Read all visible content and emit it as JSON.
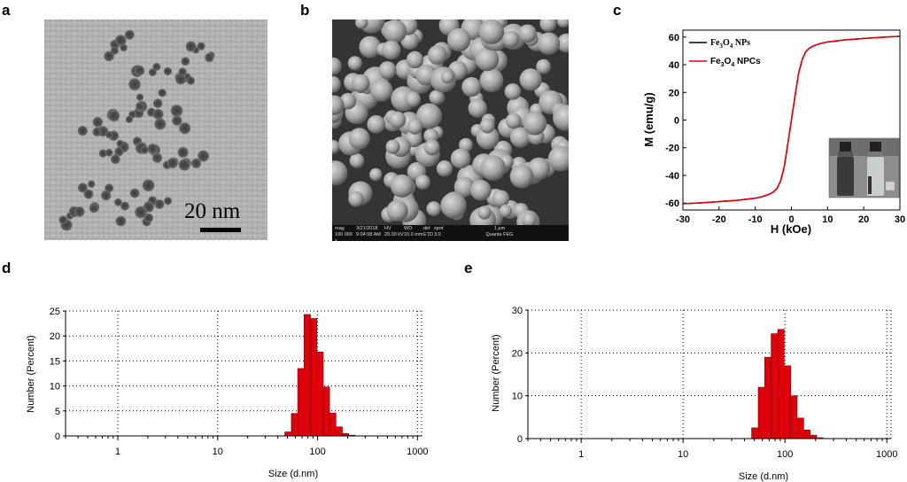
{
  "panels": {
    "a": {
      "letter": "a",
      "scale_bar": "20 nm"
    },
    "b": {
      "letter": "b",
      "info_headers": [
        "mag",
        "3/21/2018",
        "HV",
        "WD",
        "det",
        "spot",
        "1 µm"
      ],
      "info_values": [
        "100 000 x",
        "9:04:08 AM",
        "20.00 kV",
        "10.0 mm",
        "ETD",
        "3.0",
        "Quanta FEG"
      ]
    },
    "c": {
      "letter": "c"
    },
    "d": {
      "letter": "d"
    },
    "e": {
      "letter": "e"
    }
  },
  "colors": {
    "red": "#e0000b",
    "black": "#000000",
    "bar_edge": "#7a0000"
  },
  "chart_data": [
    {
      "id": "c",
      "type": "line",
      "xlabel": "H (kOe)",
      "ylabel": "M (emu/g)",
      "xlim": [
        -30,
        30
      ],
      "ylim": [
        -65,
        65
      ],
      "xticks": [
        -30,
        -20,
        -10,
        0,
        10,
        20,
        30
      ],
      "yticks": [
        -60,
        -40,
        -20,
        0,
        20,
        40,
        60
      ],
      "legend_placement": "top-left",
      "x": [
        -30,
        -25,
        -20,
        -15,
        -10,
        -8,
        -6,
        -5,
        -4,
        -3,
        -2,
        -1,
        0,
        1,
        2,
        3,
        4,
        5,
        6,
        8,
        10,
        15,
        20,
        25,
        30
      ],
      "series": [
        {
          "name": "Fe3O4 NPs",
          "legend_main": "Fe",
          "legend_sub1": "3",
          "legend_mid": "O",
          "legend_sub2": "4",
          "legend_tail": " NPs",
          "color": "#000000",
          "values": [
            -60.5,
            -59.8,
            -59,
            -58,
            -56.5,
            -55.3,
            -53.5,
            -52,
            -49.5,
            -44,
            -34,
            -17.5,
            0,
            17.5,
            34,
            44,
            49.5,
            52,
            53.5,
            55.3,
            56.5,
            58,
            59,
            59.8,
            60.5
          ]
        },
        {
          "name": "Fe3O4 NPCs",
          "legend_main": "Fe",
          "legend_sub1": "3",
          "legend_mid": "O",
          "legend_sub2": "4",
          "legend_tail": " NPCs",
          "color": "#e0000b",
          "values": [
            -60.5,
            -59.8,
            -59,
            -58,
            -56.5,
            -55.3,
            -53.5,
            -52,
            -49.5,
            -44,
            -34,
            -17.5,
            0,
            17.5,
            34,
            44,
            49.5,
            52,
            53.5,
            55.3,
            56.5,
            58,
            59,
            59.8,
            60.5
          ]
        }
      ]
    },
    {
      "id": "d",
      "type": "bar",
      "xscale": "log",
      "xlabel": "Size (d.nm)",
      "ylabel": "Number (Percent)",
      "xlim": [
        0.3,
        1100
      ],
      "ylim": [
        0,
        25
      ],
      "xticks": [
        1,
        10,
        100,
        1000
      ],
      "yticks": [
        0,
        5,
        10,
        15,
        20,
        25
      ],
      "grid": true,
      "bins": [
        {
          "x": 50.7,
          "value": 0.8
        },
        {
          "x": 58.8,
          "value": 4.5
        },
        {
          "x": 68.1,
          "value": 13.5
        },
        {
          "x": 78.8,
          "value": 24.3
        },
        {
          "x": 91.3,
          "value": 23.5
        },
        {
          "x": 105.7,
          "value": 16.8
        },
        {
          "x": 122.4,
          "value": 9.8
        },
        {
          "x": 141.8,
          "value": 4.6
        },
        {
          "x": 164.2,
          "value": 1.8
        },
        {
          "x": 190.1,
          "value": 0.5
        },
        {
          "x": 220.2,
          "value": 0.15
        }
      ]
    },
    {
      "id": "e",
      "type": "bar",
      "xscale": "log",
      "xlabel": "Size (d.nm)",
      "ylabel": "Number (Percent)",
      "xlim": [
        0.3,
        1100
      ],
      "ylim": [
        0,
        30
      ],
      "xticks": [
        1,
        10,
        100,
        1000
      ],
      "yticks": [
        0,
        10,
        20,
        30
      ],
      "grid": true,
      "bins": [
        {
          "x": 50.7,
          "value": 2.5
        },
        {
          "x": 58.8,
          "value": 12.0
        },
        {
          "x": 68.1,
          "value": 19.0
        },
        {
          "x": 78.8,
          "value": 24.5
        },
        {
          "x": 91.3,
          "value": 25.5
        },
        {
          "x": 105.7,
          "value": 17.0
        },
        {
          "x": 122.4,
          "value": 10.0
        },
        {
          "x": 141.8,
          "value": 4.8
        },
        {
          "x": 164.2,
          "value": 2.0
        },
        {
          "x": 190.1,
          "value": 0.8
        },
        {
          "x": 220.2,
          "value": 0.2
        }
      ]
    }
  ]
}
